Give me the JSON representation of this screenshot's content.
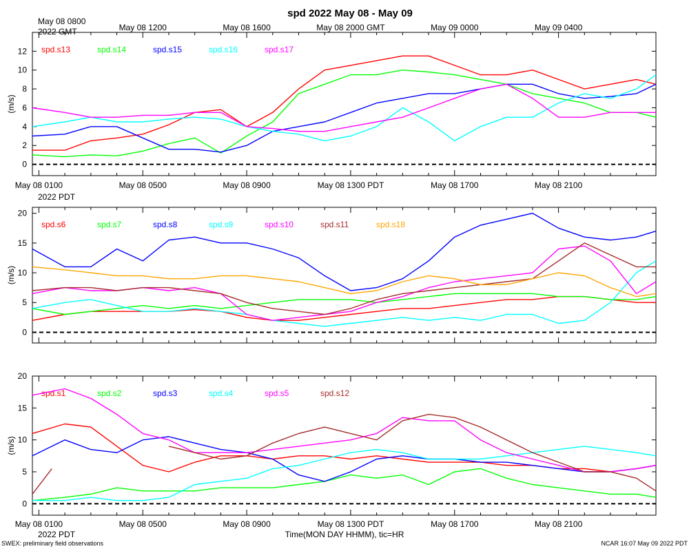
{
  "title": "spd 2022 May 08 - May 09",
  "x_axis": {
    "title": "Time(MON DAY HHMM), tic=HR",
    "start_hour": 0.75,
    "end_hour": 24.75,
    "top_year_label": "2022 GMT",
    "bottom_year_label": "2022 PDT",
    "gmt_labels": [
      {
        "hour": 1,
        "label": "May 08 0800"
      },
      {
        "hour": 5,
        "label": "May 08 1200"
      },
      {
        "hour": 9,
        "label": "May 08 1600"
      },
      {
        "hour": 13,
        "label": "May 08 2000 GMT"
      },
      {
        "hour": 17,
        "label": "May 09 0000"
      },
      {
        "hour": 21,
        "label": "May 09 0400"
      }
    ],
    "pdt_labels": [
      {
        "hour": 1,
        "label": "May 08 0100"
      },
      {
        "hour": 5,
        "label": "May 08 0500"
      },
      {
        "hour": 9,
        "label": "May 08 0900"
      },
      {
        "hour": 13,
        "label": "May 08 1300 PDT"
      },
      {
        "hour": 17,
        "label": "May 08 1700"
      },
      {
        "hour": 21,
        "label": "May 08 2100"
      }
    ]
  },
  "footer": {
    "left": "SWEX: preliminary field observations",
    "right": "NCAR 16:07 May 09 2022 PDT"
  },
  "chart_data": [
    {
      "type": "line",
      "ylabel": "(m/s)",
      "ylim": [
        -1.2,
        14
      ],
      "yticks": [
        0,
        2,
        4,
        6,
        8,
        10,
        12
      ],
      "zero_line": "dashed",
      "series": [
        {
          "name": "spd.s13",
          "color": "#ff0000",
          "x": [
            0.75,
            2,
            3,
            4,
            5,
            6,
            7,
            8,
            9,
            10,
            11,
            12,
            13,
            14,
            15,
            16,
            17,
            18,
            19,
            20,
            21,
            22,
            23,
            24,
            24.75
          ],
          "values": [
            1.5,
            1.5,
            2.5,
            2.8,
            3.2,
            4.2,
            5.5,
            5.8,
            4.0,
            5.5,
            8.0,
            10.0,
            10.5,
            11.0,
            11.5,
            11.5,
            10.5,
            9.5,
            9.5,
            10.0,
            9.0,
            8.0,
            8.5,
            9.0,
            8.5
          ]
        },
        {
          "name": "spd.s14",
          "color": "#00ff00",
          "x": [
            0.75,
            2,
            3,
            4,
            5,
            6,
            7,
            8,
            9,
            10,
            11,
            12,
            13,
            14,
            15,
            16,
            17,
            18,
            19,
            20,
            21,
            22,
            23,
            24,
            24.75
          ],
          "values": [
            1.0,
            0.8,
            1.0,
            0.9,
            1.4,
            2.2,
            2.8,
            1.2,
            3.0,
            4.5,
            7.5,
            8.5,
            9.5,
            9.5,
            10.0,
            9.8,
            9.5,
            9.0,
            8.5,
            7.5,
            7.0,
            6.5,
            5.5,
            5.5,
            5.0
          ]
        },
        {
          "name": "spd.s15",
          "color": "#0000ff",
          "x": [
            0.75,
            2,
            3,
            4,
            5,
            6,
            7,
            8,
            9,
            10,
            11,
            12,
            13,
            14,
            15,
            16,
            17,
            18,
            19,
            20,
            21,
            22,
            23,
            24,
            24.75
          ],
          "values": [
            3.0,
            3.2,
            4.0,
            4.0,
            2.8,
            1.6,
            1.6,
            1.3,
            2.0,
            3.5,
            4.0,
            4.5,
            5.5,
            6.5,
            7.0,
            7.5,
            7.5,
            8.0,
            8.5,
            8.5,
            7.5,
            7.0,
            7.2,
            7.5,
            8.5
          ]
        },
        {
          "name": "spd.s16",
          "color": "#00ffff",
          "x": [
            0.75,
            2,
            3,
            4,
            5,
            6,
            7,
            8,
            9,
            10,
            11,
            12,
            13,
            14,
            15,
            16,
            17,
            18,
            19,
            20,
            21,
            22,
            23,
            24,
            24.75
          ],
          "values": [
            4.0,
            4.5,
            5.0,
            4.5,
            4.5,
            4.8,
            5.0,
            4.8,
            4.0,
            3.5,
            3.2,
            2.5,
            3.0,
            4.0,
            6.0,
            4.5,
            2.5,
            4.0,
            5.0,
            5.0,
            6.5,
            7.5,
            7.0,
            8.0,
            9.5
          ]
        },
        {
          "name": "spd.s17",
          "color": "#ff00ff",
          "x": [
            0.75,
            2,
            3,
            4,
            5,
            6,
            7,
            8,
            9,
            10,
            11,
            12,
            13,
            14,
            15,
            16,
            17,
            18,
            19,
            20,
            21,
            22,
            23,
            24,
            24.75
          ],
          "values": [
            6.0,
            5.5,
            5.0,
            5.0,
            5.2,
            5.2,
            5.5,
            5.5,
            4.0,
            3.8,
            3.5,
            3.5,
            4.0,
            4.5,
            5.0,
            6.0,
            7.0,
            8.0,
            8.5,
            7.0,
            5.0,
            5.0,
            5.5,
            5.5,
            5.5
          ]
        }
      ]
    },
    {
      "type": "line",
      "ylabel": "(m/s)",
      "ylim": [
        -1.8,
        21
      ],
      "yticks": [
        0,
        5,
        10,
        15,
        20
      ],
      "zero_line": "dashed",
      "series": [
        {
          "name": "spd.s6",
          "color": "#ff0000",
          "x": [
            0.75,
            2,
            3,
            4,
            5,
            6,
            7,
            8,
            9,
            10,
            11,
            12,
            13,
            14,
            15,
            16,
            17,
            18,
            19,
            20,
            21,
            22,
            23,
            24,
            24.75
          ],
          "values": [
            2.0,
            3.0,
            3.5,
            3.5,
            3.5,
            3.5,
            3.8,
            3.5,
            2.5,
            2.0,
            2.0,
            2.5,
            3.0,
            3.5,
            4.0,
            4.0,
            4.5,
            5.0,
            5.5,
            5.5,
            6.0,
            6.0,
            5.5,
            5.0,
            5.0
          ]
        },
        {
          "name": "spd.s7",
          "color": "#00ff00",
          "x": [
            0.75,
            2,
            3,
            4,
            5,
            6,
            7,
            8,
            9,
            10,
            11,
            12,
            13,
            14,
            15,
            16,
            17,
            18,
            19,
            20,
            21,
            22,
            23,
            24,
            24.75
          ],
          "values": [
            4.0,
            3.0,
            3.5,
            4.0,
            4.5,
            4.0,
            4.5,
            4.0,
            4.5,
            5.0,
            5.5,
            5.5,
            5.5,
            5.0,
            5.5,
            6.0,
            6.5,
            6.5,
            6.5,
            6.5,
            6.0,
            6.0,
            5.5,
            5.5,
            6.0
          ]
        },
        {
          "name": "spd.s8",
          "color": "#0000ff",
          "x": [
            0.75,
            2,
            3,
            4,
            5,
            6,
            7,
            8,
            9,
            10,
            11,
            12,
            13,
            14,
            15,
            16,
            17,
            18,
            19,
            20,
            21,
            22,
            23,
            24,
            24.75
          ],
          "values": [
            14.0,
            11.0,
            11.0,
            14.0,
            12.0,
            15.5,
            16.0,
            15.0,
            15.0,
            14.0,
            12.5,
            9.5,
            7.0,
            7.5,
            9.0,
            12.0,
            16.0,
            18.0,
            19.0,
            20.0,
            17.5,
            16.0,
            15.5,
            16.0,
            17.0
          ]
        },
        {
          "name": "spd.s9",
          "color": "#00ffff",
          "x": [
            0.75,
            2,
            3,
            4,
            5,
            6,
            7,
            8,
            9,
            10,
            11,
            12,
            13,
            14,
            15,
            16,
            17,
            18,
            19,
            20,
            21,
            22,
            23,
            24,
            24.75
          ],
          "values": [
            4.0,
            5.0,
            5.5,
            4.5,
            3.5,
            3.5,
            4.0,
            3.5,
            3.0,
            2.0,
            1.5,
            1.0,
            1.5,
            2.0,
            2.5,
            2.0,
            2.5,
            2.0,
            3.0,
            3.0,
            1.5,
            2.0,
            5.0,
            10.0,
            12.0
          ]
        },
        {
          "name": "spd.s10",
          "color": "#ff00ff",
          "x": [
            0.75,
            2,
            3,
            4,
            5,
            6,
            7,
            8,
            9,
            10,
            11,
            12,
            13,
            14,
            15,
            16,
            17,
            18,
            19,
            20,
            21,
            22,
            23,
            24,
            24.75
          ],
          "values": [
            6.5,
            7.5,
            7.0,
            7.0,
            7.5,
            7.0,
            7.5,
            6.5,
            3.0,
            2.0,
            2.5,
            3.0,
            3.5,
            5.0,
            6.0,
            7.5,
            8.5,
            9.0,
            9.5,
            10.0,
            14.0,
            14.5,
            12.0,
            6.5,
            8.5
          ]
        },
        {
          "name": "spd.s11",
          "color": "#a52a2a",
          "x": [
            0.75,
            2,
            3,
            4,
            5,
            6,
            7,
            8,
            9,
            10,
            11,
            12,
            13,
            14,
            15,
            16,
            17,
            18,
            19,
            20,
            21,
            22,
            23,
            24,
            24.75
          ],
          "values": [
            7.0,
            7.5,
            7.5,
            7.0,
            7.5,
            7.5,
            7.0,
            6.5,
            5.0,
            4.0,
            3.5,
            3.0,
            4.0,
            5.5,
            6.5,
            7.0,
            7.5,
            8.0,
            8.5,
            9.0,
            12.0,
            15.0,
            13.0,
            11.0,
            11.0
          ]
        },
        {
          "name": "spd.s18",
          "color": "#ffa500",
          "x": [
            0.75,
            2,
            3,
            4,
            5,
            6,
            7,
            8,
            9,
            10,
            11,
            12,
            13,
            14,
            15,
            16,
            17,
            18,
            19,
            20,
            21,
            22,
            23,
            24,
            24.75
          ],
          "values": [
            11.0,
            10.5,
            10.0,
            9.5,
            9.5,
            9.0,
            9.0,
            9.5,
            9.5,
            9.0,
            8.5,
            7.5,
            6.5,
            7.0,
            8.5,
            9.5,
            9.0,
            8.0,
            8.0,
            9.0,
            10.0,
            9.5,
            7.5,
            6.0,
            6.5
          ]
        }
      ]
    },
    {
      "type": "line",
      "ylabel": "(m/s)",
      "ylim": [
        -1.8,
        20
      ],
      "yticks": [
        0,
        5,
        10,
        15,
        20
      ],
      "zero_line": "dashed",
      "series": [
        {
          "name": "spd.s1",
          "color": "#ff0000",
          "x": [
            0.75,
            2,
            3,
            4,
            5,
            6,
            7,
            8,
            9,
            10,
            11,
            12,
            13,
            14,
            15,
            16,
            17,
            18,
            19,
            20,
            21,
            22,
            23,
            24,
            24.75
          ],
          "values": [
            11.0,
            12.5,
            12.0,
            9.0,
            6.0,
            5.0,
            6.5,
            7.5,
            7.5,
            7.0,
            7.5,
            7.5,
            7.0,
            7.5,
            7.0,
            6.5,
            6.5,
            6.5,
            6.0,
            6.0,
            5.5,
            5.5,
            5.0,
            5.5,
            6.0
          ]
        },
        {
          "name": "spd.s2",
          "color": "#00ff00",
          "x": [
            0.75,
            2,
            3,
            4,
            5,
            6,
            7,
            8,
            9,
            10,
            11,
            12,
            13,
            14,
            15,
            16,
            17,
            18,
            19,
            20,
            21,
            22,
            23,
            24,
            24.75
          ],
          "values": [
            0.5,
            1.0,
            1.5,
            2.5,
            2.0,
            2.0,
            2.0,
            2.5,
            2.5,
            2.5,
            3.0,
            3.5,
            4.5,
            4.0,
            4.5,
            3.0,
            5.0,
            5.5,
            4.0,
            3.0,
            2.5,
            2.0,
            1.5,
            1.5,
            1.0
          ]
        },
        {
          "name": "spd.s3",
          "color": "#0000ff",
          "x": [
            0.75,
            2,
            3,
            4,
            5,
            6,
            7,
            8,
            9,
            10,
            11,
            12,
            13,
            14,
            15,
            16,
            17,
            18,
            19,
            20,
            21,
            22,
            23,
            24,
            24.75
          ],
          "values": [
            7.5,
            10.0,
            8.5,
            8.0,
            10.0,
            10.5,
            9.5,
            8.5,
            8.0,
            7.0,
            4.5,
            3.5,
            5.0,
            7.0,
            7.5,
            7.0,
            7.0,
            6.5,
            6.5,
            6.0,
            5.5,
            5.0,
            5.0,
            5.5,
            6.0
          ]
        },
        {
          "name": "spd.s4",
          "color": "#00ffff",
          "x": [
            0.75,
            2,
            3,
            4,
            5,
            6,
            7,
            8,
            9,
            10,
            11,
            12,
            13,
            14,
            15,
            16,
            17,
            18,
            19,
            20,
            21,
            22,
            23,
            24,
            24.75
          ],
          "values": [
            0.5,
            0.5,
            1.0,
            0.5,
            0.5,
            1.0,
            3.0,
            3.5,
            4.0,
            5.5,
            6.0,
            7.0,
            8.0,
            8.5,
            8.0,
            7.0,
            7.0,
            7.0,
            7.5,
            8.0,
            8.5,
            9.0,
            8.5,
            8.0,
            7.5
          ]
        },
        {
          "name": "spd.s5",
          "color": "#ff00ff",
          "x": [
            0.75,
            2,
            3,
            4,
            5,
            6,
            7,
            8,
            9,
            10,
            11,
            12,
            13,
            14,
            15,
            16,
            17,
            18,
            19,
            20,
            21,
            22,
            23,
            24,
            24.75
          ],
          "values": [
            17.0,
            18.0,
            16.5,
            14.0,
            11.0,
            10.0,
            8.0,
            8.0,
            8.0,
            8.5,
            9.0,
            9.5,
            10.0,
            11.0,
            13.5,
            13.0,
            13.0,
            10.0,
            8.0,
            7.0,
            6.0,
            5.0,
            5.0,
            5.5,
            6.0
          ]
        },
        {
          "name": "spd.s12",
          "color": "#a52a2a",
          "x": [
            0.75,
            1.5,
            2,
            3,
            4,
            5,
            6,
            7,
            8,
            9,
            10,
            11,
            12,
            13,
            14,
            15,
            16,
            17,
            18,
            19,
            20,
            21,
            22,
            23,
            24,
            24.75
          ],
          "values": [
            1.5,
            5.5,
            null,
            null,
            null,
            null,
            9.0,
            8.0,
            7.0,
            7.5,
            9.5,
            11.0,
            12.0,
            11.0,
            10.0,
            13.0,
            14.0,
            13.5,
            12.0,
            10.0,
            8.0,
            6.5,
            5.0,
            5.0,
            4.0,
            2.0
          ]
        }
      ]
    }
  ]
}
